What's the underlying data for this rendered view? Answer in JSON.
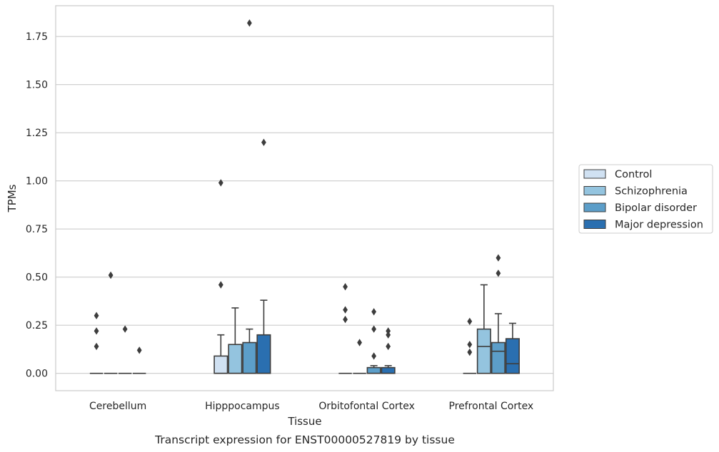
{
  "chart_data": {
    "type": "box",
    "title": "",
    "caption": "Transcript expression for ENST00000527819 by tissue",
    "xlabel": "Tissue",
    "ylabel": "TPMs",
    "categories": [
      "Cerebellum",
      "Hipppocampus",
      "Orbitofontal Cortex",
      "Prefrontal Cortex"
    ],
    "ylim": [
      -0.09,
      1.91
    ],
    "yticks": [
      0.0,
      0.25,
      0.5,
      0.75,
      1.0,
      1.25,
      1.5,
      1.75
    ],
    "ytick_labels": [
      "0.00",
      "0.25",
      "0.50",
      "0.75",
      "1.00",
      "1.25",
      "1.50",
      "1.75"
    ],
    "grid": "horizontal",
    "legend_position": "right",
    "series": [
      {
        "name": "Control",
        "color": "#d0e1f2",
        "boxes": [
          {
            "q1": 0,
            "median": 0,
            "q3": 0,
            "whisker_low": 0,
            "whisker_high": 0,
            "outliers": [
              0.3,
              0.22,
              0.14
            ]
          },
          {
            "q1": 0,
            "median": 0,
            "q3": 0.09,
            "whisker_low": 0,
            "whisker_high": 0.2,
            "outliers": [
              0.99,
              0.46
            ]
          },
          {
            "q1": 0,
            "median": 0,
            "q3": 0,
            "whisker_low": 0,
            "whisker_high": 0,
            "outliers": [
              0.45,
              0.33,
              0.28
            ]
          },
          {
            "q1": 0,
            "median": 0,
            "q3": 0,
            "whisker_low": 0,
            "whisker_high": 0,
            "outliers": [
              0.27,
              0.15,
              0.11
            ]
          }
        ]
      },
      {
        "name": "Schizophrenia",
        "color": "#94c4df",
        "boxes": [
          {
            "q1": 0,
            "median": 0,
            "q3": 0,
            "whisker_low": 0,
            "whisker_high": 0,
            "outliers": [
              0.51
            ]
          },
          {
            "q1": 0,
            "median": 0,
            "q3": 0.15,
            "whisker_low": 0,
            "whisker_high": 0.34,
            "outliers": []
          },
          {
            "q1": 0,
            "median": 0,
            "q3": 0,
            "whisker_low": 0,
            "whisker_high": 0,
            "outliers": [
              0.16
            ]
          },
          {
            "q1": 0,
            "median": 0.14,
            "q3": 0.23,
            "whisker_low": 0,
            "whisker_high": 0.46,
            "outliers": []
          }
        ]
      },
      {
        "name": "Bipolar disorder",
        "color": "#5c9ec9",
        "boxes": [
          {
            "q1": 0,
            "median": 0,
            "q3": 0,
            "whisker_low": 0,
            "whisker_high": 0,
            "outliers": [
              0.23
            ]
          },
          {
            "q1": 0,
            "median": 0,
            "q3": 0.16,
            "whisker_low": 0,
            "whisker_high": 0.23,
            "outliers": [
              1.82
            ]
          },
          {
            "q1": 0,
            "median": 0,
            "q3": 0.03,
            "whisker_low": 0,
            "whisker_high": 0.04,
            "outliers": [
              0.32,
              0.23,
              0.09
            ]
          },
          {
            "q1": 0,
            "median": 0.115,
            "q3": 0.16,
            "whisker_low": 0,
            "whisker_high": 0.31,
            "outliers": [
              0.6,
              0.52
            ]
          }
        ]
      },
      {
        "name": "Major depression",
        "color": "#2a6fb0",
        "boxes": [
          {
            "q1": 0,
            "median": 0,
            "q3": 0,
            "whisker_low": 0,
            "whisker_high": 0,
            "outliers": [
              0.12
            ]
          },
          {
            "q1": 0,
            "median": 0,
            "q3": 0.2,
            "whisker_low": 0,
            "whisker_high": 0.38,
            "outliers": [
              1.2
            ]
          },
          {
            "q1": 0,
            "median": 0,
            "q3": 0.03,
            "whisker_low": 0,
            "whisker_high": 0.04,
            "outliers": [
              0.22,
              0.2,
              0.14
            ]
          },
          {
            "q1": 0,
            "median": 0.05,
            "q3": 0.18,
            "whisker_low": 0,
            "whisker_high": 0.26,
            "outliers": []
          }
        ]
      }
    ]
  }
}
